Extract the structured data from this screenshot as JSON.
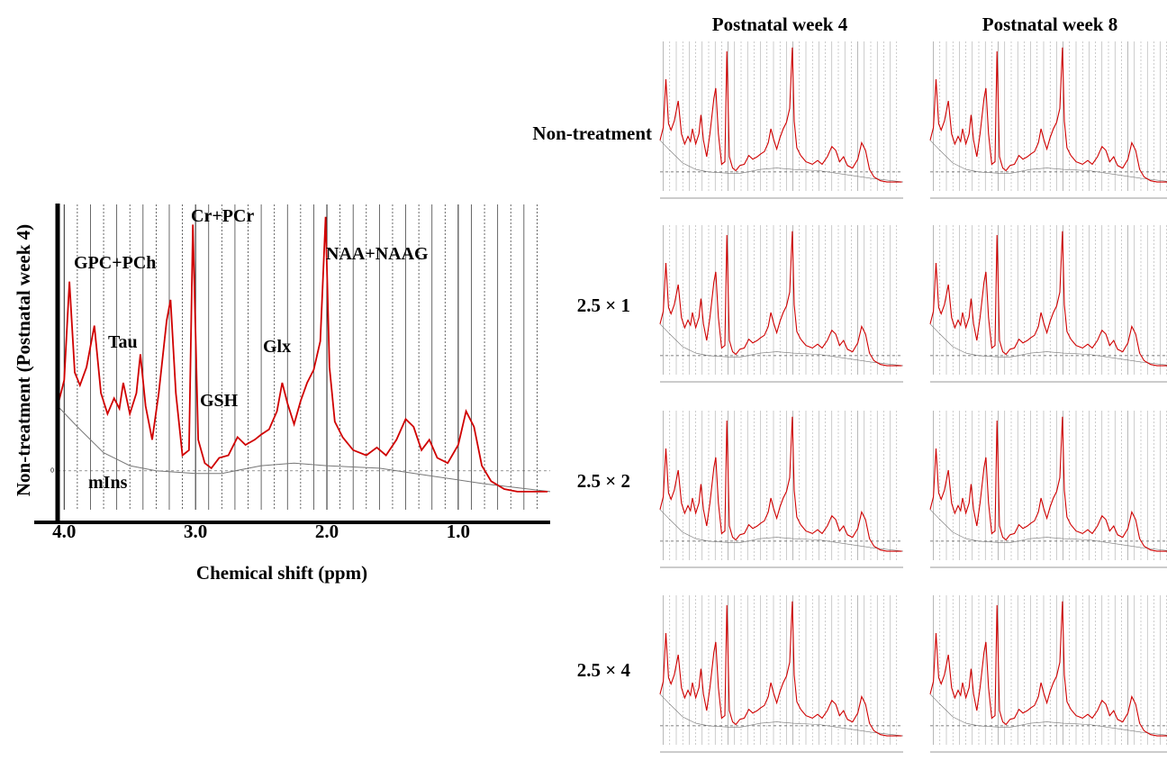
{
  "chart_data": [
    {
      "type": "line",
      "y_label": "Non-treatment (Postnatal week 4)",
      "x_label": "Chemical shift (ppm)",
      "annotations": [
        "GPC+PCh",
        "Tau",
        "Cr+PCr",
        "NAA+NAAG",
        "Glx",
        "GSH",
        "mIns"
      ],
      "xlim": [
        4.05,
        0.3
      ],
      "ylim": [
        -0.15,
        1.0
      ],
      "xticks": [
        {
          "value": 4,
          "label": "4.0"
        },
        {
          "value": 3,
          "label": "3.0"
        },
        {
          "value": 2,
          "label": "2.0"
        },
        {
          "value": 1,
          "label": "1.0"
        }
      ],
      "yticks": [
        0
      ],
      "minor_xticks": [
        3.9,
        3.8,
        3.7,
        3.6,
        3.5,
        3.4,
        3.3,
        3.2,
        3.1,
        2.9,
        2.8,
        2.7,
        2.6,
        2.5,
        2.4,
        2.3,
        2.2,
        2.1,
        1.9,
        1.8,
        1.7,
        1.6,
        1.5,
        1.4,
        1.3,
        1.2,
        1.1,
        0.9,
        0.8,
        0.7,
        0.6,
        0.5,
        0.4
      ],
      "series": [
        {
          "color": "#d00000",
          "x": [
            4.05,
            4.0,
            3.96,
            3.92,
            3.88,
            3.83,
            3.77,
            3.72,
            3.67,
            3.62,
            3.58,
            3.55,
            3.5,
            3.45,
            3.42,
            3.38,
            3.33,
            3.28,
            3.22,
            3.19,
            3.15,
            3.1,
            3.05,
            3.02,
            2.98,
            2.93,
            2.88,
            2.82,
            2.75,
            2.68,
            2.62,
            2.55,
            2.5,
            2.44,
            2.38,
            2.34,
            2.3,
            2.25,
            2.2,
            2.15,
            2.1,
            2.05,
            2.01,
            1.98,
            1.94,
            1.88,
            1.8,
            1.7,
            1.62,
            1.55,
            1.47,
            1.4,
            1.34,
            1.28,
            1.22,
            1.16,
            1.08,
            1.0,
            0.94,
            0.88,
            0.82,
            0.75,
            0.65,
            0.55,
            0.45,
            0.32
          ],
          "values": [
            0.25,
            0.35,
            0.73,
            0.38,
            0.33,
            0.4,
            0.56,
            0.3,
            0.22,
            0.28,
            0.24,
            0.34,
            0.22,
            0.3,
            0.45,
            0.25,
            0.12,
            0.3,
            0.58,
            0.66,
            0.3,
            0.06,
            0.08,
            0.95,
            0.12,
            0.03,
            0.01,
            0.05,
            0.06,
            0.13,
            0.1,
            0.12,
            0.14,
            0.16,
            0.23,
            0.34,
            0.26,
            0.18,
            0.27,
            0.34,
            0.39,
            0.5,
            0.98,
            0.4,
            0.19,
            0.13,
            0.08,
            0.06,
            0.09,
            0.06,
            0.12,
            0.2,
            0.17,
            0.08,
            0.12,
            0.05,
            0.03,
            0.1,
            0.23,
            0.17,
            0.02,
            -0.04,
            -0.07,
            -0.08,
            -0.08,
            -0.08
          ]
        },
        {
          "color": "#777777",
          "x": [
            4.05,
            3.9,
            3.7,
            3.5,
            3.3,
            3.0,
            2.8,
            2.5,
            2.25,
            2.0,
            1.6,
            1.2,
            0.8,
            0.3
          ],
          "values": [
            0.25,
            0.17,
            0.07,
            0.02,
            0.0,
            -0.01,
            -0.01,
            0.02,
            0.03,
            0.02,
            0.01,
            -0.02,
            -0.05,
            -0.08
          ]
        }
      ]
    },
    {
      "type": "panels",
      "columns": [
        "Postnatal week 4",
        "Postnatal week 8"
      ],
      "rows": [
        "Non-treatment",
        "2.5 × 1",
        "2.5 × 2",
        "2.5 × 4"
      ]
    }
  ]
}
